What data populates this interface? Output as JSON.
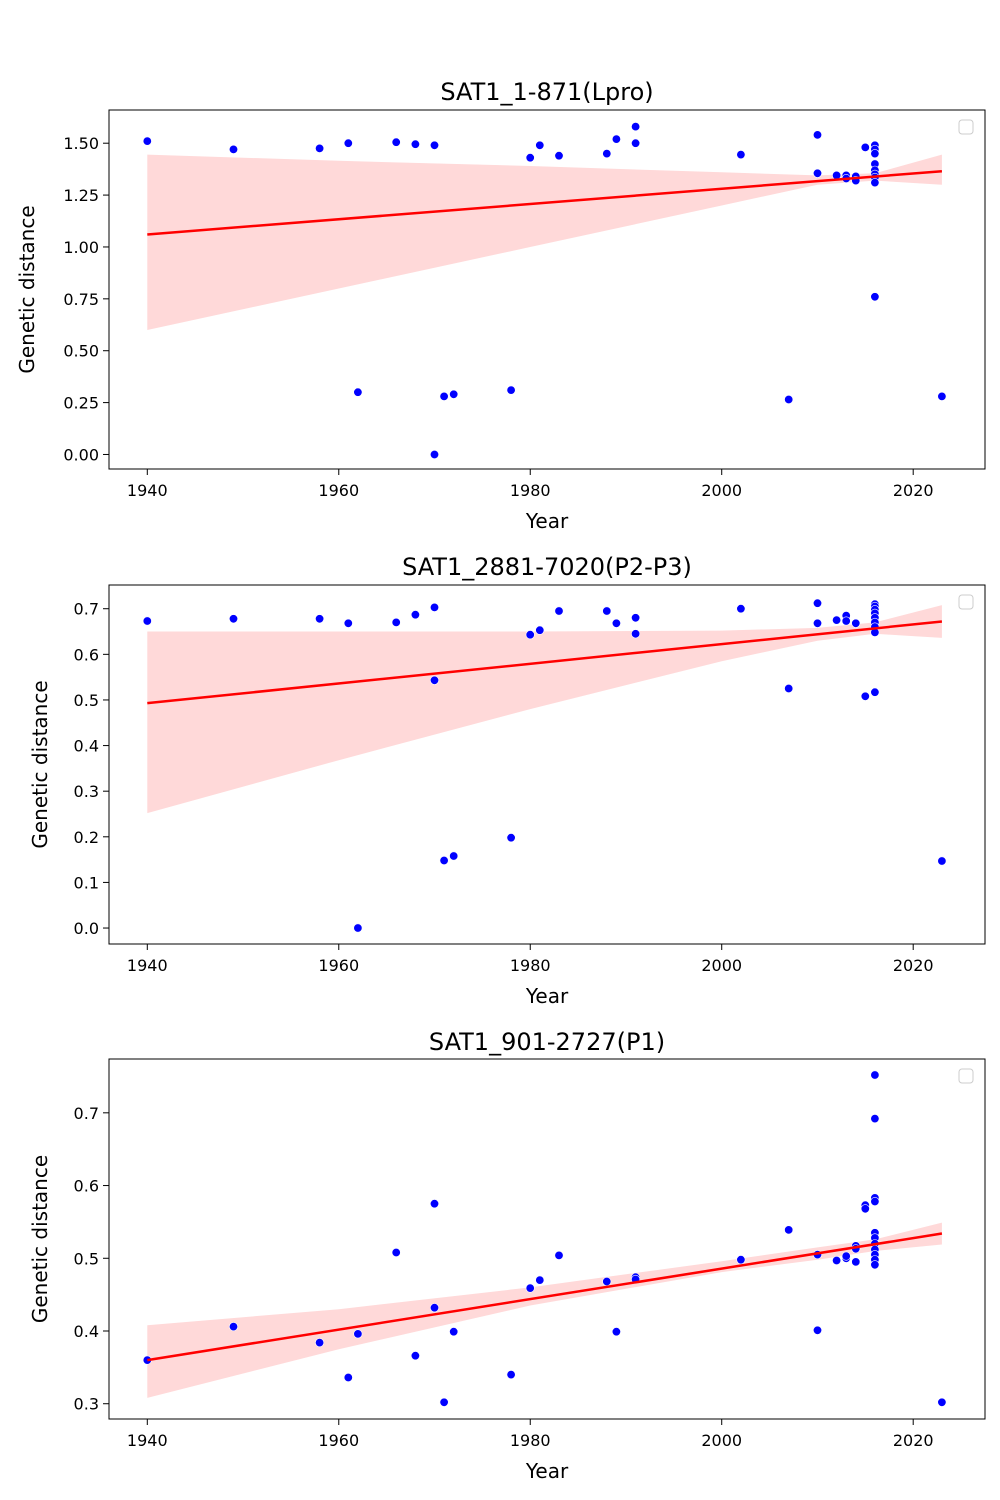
{
  "colors": {
    "point": "#0000ff",
    "fit": "#ff0000",
    "band": "#ffd9d9"
  },
  "chart_data": [
    {
      "type": "scatter",
      "title": "SAT1_1-871(Lpro)",
      "xlabel": "Year",
      "ylabel": "Genetic distance",
      "xlim": [
        1936,
        2027.5
      ],
      "ylim": [
        -0.07,
        1.66
      ],
      "xticks": [
        1940,
        1960,
        1980,
        2000,
        2020
      ],
      "yticks": [
        0.0,
        0.25,
        0.5,
        0.75,
        1.0,
        1.25,
        1.5
      ],
      "ytick_labels": [
        "0.00",
        "0.25",
        "0.50",
        "0.75",
        "1.00",
        "1.25",
        "1.50"
      ],
      "legend": "top-right",
      "points": [
        [
          1940,
          1.51
        ],
        [
          1949,
          1.47
        ],
        [
          1958,
          1.475
        ],
        [
          1961,
          1.5
        ],
        [
          1962,
          0.3
        ],
        [
          1966,
          1.505
        ],
        [
          1968,
          1.495
        ],
        [
          1970,
          1.49
        ],
        [
          1970,
          0.0
        ],
        [
          1971,
          0.28
        ],
        [
          1972,
          0.29
        ],
        [
          1978,
          0.31
        ],
        [
          1980,
          1.43
        ],
        [
          1981,
          1.49
        ],
        [
          1983,
          1.44
        ],
        [
          1988,
          1.45
        ],
        [
          1989,
          1.52
        ],
        [
          1991,
          1.58
        ],
        [
          1991,
          1.5
        ],
        [
          2002,
          1.445
        ],
        [
          2007,
          0.265
        ],
        [
          2010,
          1.54
        ],
        [
          2010,
          1.355
        ],
        [
          2012,
          1.345
        ],
        [
          2013,
          1.345
        ],
        [
          2013,
          1.33
        ],
        [
          2014,
          1.34
        ],
        [
          2014,
          1.32
        ],
        [
          2015,
          1.48
        ],
        [
          2016,
          1.49
        ],
        [
          2016,
          1.47
        ],
        [
          2016,
          1.45
        ],
        [
          2016,
          1.4
        ],
        [
          2016,
          1.37
        ],
        [
          2016,
          1.35
        ],
        [
          2016,
          1.335
        ],
        [
          2016,
          1.31
        ],
        [
          2016,
          0.76
        ],
        [
          2023,
          0.28
        ]
      ],
      "fit_line": [
        [
          1940,
          1.06
        ],
        [
          2023,
          1.365
        ]
      ],
      "ci_band": {
        "x": [
          1940,
          1960,
          1980,
          2000,
          2010,
          2016,
          2023
        ],
        "upper": [
          1.445,
          1.415,
          1.39,
          1.36,
          1.345,
          1.355,
          1.445
        ],
        "lower": [
          0.6,
          0.8,
          1.0,
          1.2,
          1.3,
          1.32,
          1.3
        ]
      }
    },
    {
      "type": "scatter",
      "title": "SAT1_2881-7020(P2-P3)",
      "xlabel": "Year",
      "ylabel": "Genetic distance",
      "xlim": [
        1936,
        2027.5
      ],
      "ylim": [
        -0.035,
        0.752
      ],
      "xticks": [
        1940,
        1960,
        1980,
        2000,
        2020
      ],
      "yticks": [
        0.0,
        0.1,
        0.2,
        0.3,
        0.4,
        0.5,
        0.6,
        0.7
      ],
      "ytick_labels": [
        "0.0",
        "0.1",
        "0.2",
        "0.3",
        "0.4",
        "0.5",
        "0.6",
        "0.7"
      ],
      "legend": "top-right",
      "points": [
        [
          1940,
          0.673
        ],
        [
          1949,
          0.678
        ],
        [
          1958,
          0.678
        ],
        [
          1961,
          0.668
        ],
        [
          1962,
          0.0
        ],
        [
          1966,
          0.67
        ],
        [
          1968,
          0.687
        ],
        [
          1970,
          0.703
        ],
        [
          1970,
          0.543
        ],
        [
          1971,
          0.148
        ],
        [
          1972,
          0.158
        ],
        [
          1978,
          0.198
        ],
        [
          1980,
          0.643
        ],
        [
          1981,
          0.653
        ],
        [
          1983,
          0.695
        ],
        [
          1988,
          0.695
        ],
        [
          1989,
          0.668
        ],
        [
          1991,
          0.68
        ],
        [
          1991,
          0.645
        ],
        [
          2002,
          0.7
        ],
        [
          2007,
          0.525
        ],
        [
          2010,
          0.712
        ],
        [
          2010,
          0.668
        ],
        [
          2012,
          0.675
        ],
        [
          2013,
          0.685
        ],
        [
          2013,
          0.673
        ],
        [
          2014,
          0.668
        ],
        [
          2015,
          0.508
        ],
        [
          2016,
          0.71
        ],
        [
          2016,
          0.705
        ],
        [
          2016,
          0.698
        ],
        [
          2016,
          0.69
        ],
        [
          2016,
          0.68
        ],
        [
          2016,
          0.67
        ],
        [
          2016,
          0.66
        ],
        [
          2016,
          0.648
        ],
        [
          2016,
          0.517
        ],
        [
          2023,
          0.147
        ]
      ],
      "fit_line": [
        [
          1940,
          0.493
        ],
        [
          2023,
          0.672
        ]
      ],
      "ci_band": {
        "x": [
          1940,
          1960,
          1980,
          2000,
          2010,
          2016,
          2023
        ],
        "upper": [
          0.65,
          0.65,
          0.65,
          0.652,
          0.658,
          0.67,
          0.708
        ],
        "lower": [
          0.252,
          0.368,
          0.48,
          0.585,
          0.63,
          0.645,
          0.636
        ]
      }
    },
    {
      "type": "scatter",
      "title": "SAT1_901-2727(P1)",
      "xlabel": "Year",
      "ylabel": "Genetic distance",
      "xlim": [
        1936,
        2027.5
      ],
      "ylim": [
        0.279,
        0.774
      ],
      "xticks": [
        1940,
        1960,
        1980,
        2000,
        2020
      ],
      "yticks": [
        0.3,
        0.4,
        0.5,
        0.6,
        0.7
      ],
      "ytick_labels": [
        "0.3",
        "0.4",
        "0.5",
        "0.6",
        "0.7"
      ],
      "legend": "top-right",
      "points": [
        [
          1940,
          0.36
        ],
        [
          1949,
          0.406
        ],
        [
          1958,
          0.384
        ],
        [
          1961,
          0.336
        ],
        [
          1962,
          0.396
        ],
        [
          1966,
          0.508
        ],
        [
          1968,
          0.366
        ],
        [
          1970,
          0.575
        ],
        [
          1970,
          0.432
        ],
        [
          1971,
          0.302
        ],
        [
          1972,
          0.399
        ],
        [
          1978,
          0.34
        ],
        [
          1980,
          0.459
        ],
        [
          1981,
          0.47
        ],
        [
          1983,
          0.504
        ],
        [
          1988,
          0.468
        ],
        [
          1989,
          0.399
        ],
        [
          1991,
          0.474
        ],
        [
          1991,
          0.471
        ],
        [
          2002,
          0.498
        ],
        [
          2007,
          0.539
        ],
        [
          2010,
          0.505
        ],
        [
          2010,
          0.401
        ],
        [
          2012,
          0.497
        ],
        [
          2013,
          0.5
        ],
        [
          2013,
          0.503
        ],
        [
          2014,
          0.517
        ],
        [
          2014,
          0.513
        ],
        [
          2014,
          0.495
        ],
        [
          2015,
          0.573
        ],
        [
          2015,
          0.568
        ],
        [
          2016,
          0.752
        ],
        [
          2016,
          0.692
        ],
        [
          2016,
          0.583
        ],
        [
          2016,
          0.578
        ],
        [
          2016,
          0.535
        ],
        [
          2016,
          0.528
        ],
        [
          2016,
          0.52
        ],
        [
          2016,
          0.512
        ],
        [
          2016,
          0.505
        ],
        [
          2016,
          0.498
        ],
        [
          2016,
          0.491
        ],
        [
          2023,
          0.302
        ]
      ],
      "fit_line": [
        [
          1940,
          0.36
        ],
        [
          2023,
          0.534
        ]
      ],
      "ci_band": {
        "x": [
          1940,
          1960,
          1980,
          2000,
          2010,
          2016,
          2023
        ],
        "upper": [
          0.408,
          0.43,
          0.46,
          0.496,
          0.515,
          0.526,
          0.549
        ],
        "lower": [
          0.308,
          0.375,
          0.435,
          0.481,
          0.498,
          0.51,
          0.519
        ]
      }
    }
  ]
}
